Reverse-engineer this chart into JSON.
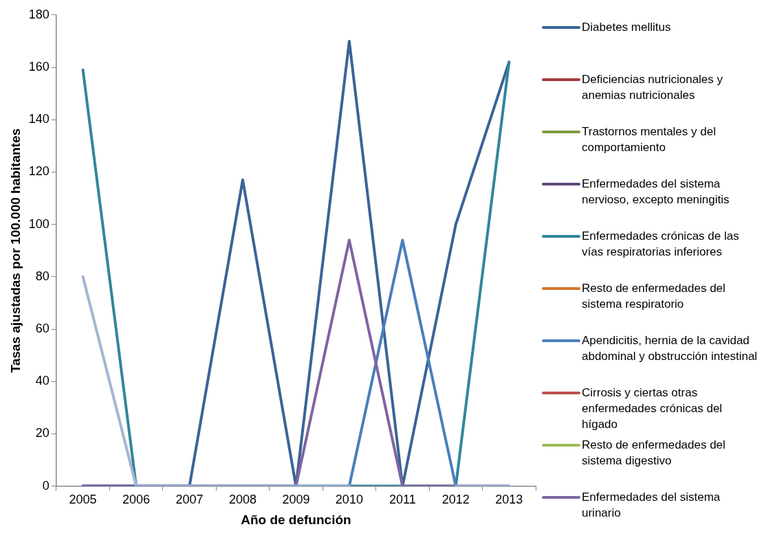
{
  "chart_data": {
    "type": "line",
    "xlabel": "Año de defunción",
    "ylabel": "Tasas ajustadas por 100.000 habitantes",
    "categories": [
      "2005",
      "2006",
      "2007",
      "2008",
      "2009",
      "2010",
      "2011",
      "2012",
      "2013"
    ],
    "ylim": [
      0,
      180
    ],
    "yticks": [
      0,
      20,
      40,
      60,
      80,
      100,
      120,
      140,
      160,
      180
    ],
    "legend": "right",
    "marker": "none",
    "line_style": "solid",
    "series": [
      {
        "name": "Diabetes mellitus",
        "color": "#3a6496",
        "values": [
          0,
          0,
          0,
          117,
          0,
          170,
          0,
          100,
          162
        ]
      },
      {
        "name": "Deficiencias nutricionales y anemias nutricionales",
        "color": "#a33b38",
        "values": [
          null,
          null,
          null,
          null,
          null,
          null,
          null,
          null,
          null
        ]
      },
      {
        "name": "Trastornos mentales y del comportamiento",
        "color": "#7f9a41",
        "values": [
          null,
          null,
          null,
          null,
          null,
          null,
          null,
          null,
          null
        ]
      },
      {
        "name": "Enfermedades del sistema nervioso, excepto meningitis",
        "color": "#5f4a7e",
        "values": [
          null,
          null,
          null,
          null,
          null,
          null,
          null,
          null,
          null
        ]
      },
      {
        "name": "Enfermedades crónicas de las vías respiratorias inferiores",
        "color": "#31869b",
        "values": [
          159,
          0,
          0,
          0,
          0,
          0,
          0,
          0,
          162
        ]
      },
      {
        "name": "Resto de enfermedades del sistema respiratorio",
        "color": "#d2772d",
        "values": [
          null,
          null,
          null,
          null,
          null,
          null,
          null,
          null,
          null
        ]
      },
      {
        "name": "Apendicitis, hernia de la cavidad abdominal y obstrucción intestinal",
        "color": "#4a7ebb",
        "values": [
          0,
          0,
          0,
          0,
          0,
          0,
          94,
          0,
          0
        ]
      },
      {
        "name": "Cirrosis y ciertas otras enfermedades crónicas del hígado",
        "color": "#c0504d",
        "values": [
          null,
          null,
          null,
          null,
          null,
          null,
          null,
          null,
          null
        ]
      },
      {
        "name": "Resto de enfermedades del sistema digestivo",
        "color": "#9bbb59",
        "values": [
          null,
          null,
          null,
          null,
          null,
          null,
          null,
          null,
          null
        ]
      },
      {
        "name": "Enfermedades del sistema urinario",
        "color": "#8064a2",
        "values": [
          0,
          0,
          0,
          0,
          0,
          94,
          0,
          0,
          0
        ]
      },
      {
        "color": "#a5b5d3",
        "values": [
          80,
          0,
          0,
          0,
          0,
          0,
          null,
          0,
          0
        ]
      }
    ]
  }
}
